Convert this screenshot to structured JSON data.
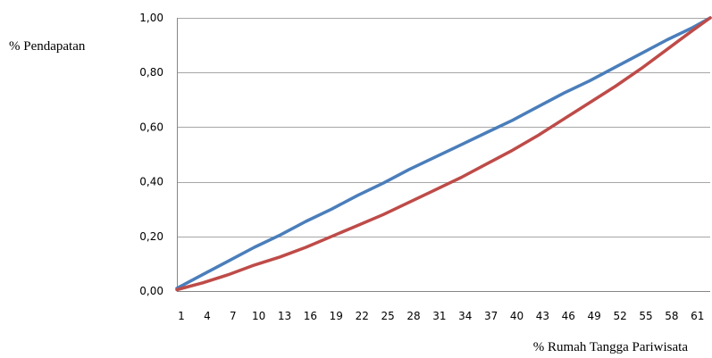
{
  "chart_data": {
    "type": "line",
    "title": "",
    "ylabel": "% Pendapatan",
    "xlabel": "% Rumah Tangga Pariwisata",
    "ylim": [
      0,
      1
    ],
    "yticks": [
      "0,00",
      "0,20",
      "0,40",
      "0,60",
      "0,80",
      "1,00"
    ],
    "ytick_values": [
      0,
      0.2,
      0.4,
      0.6,
      0.8,
      1.0
    ],
    "xlim": [
      1,
      63
    ],
    "xticks": [
      "1",
      "4",
      "7",
      "10",
      "13",
      "16",
      "19",
      "22",
      "25",
      "28",
      "31",
      "34",
      "37",
      "40",
      "43",
      "46",
      "49",
      "52",
      "55",
      "58",
      "61"
    ],
    "xtick_values": [
      1,
      4,
      7,
      10,
      13,
      16,
      19,
      22,
      25,
      28,
      31,
      34,
      37,
      40,
      43,
      46,
      49,
      52,
      55,
      58,
      61
    ],
    "grid": true,
    "legend": "none",
    "colors": {
      "series1": "#4a7ebb",
      "series2": "#be4b48",
      "grid": "#a6a6a6"
    },
    "series": [
      {
        "color": "#4a7ebb",
        "x": [
          1,
          4,
          7,
          10,
          13,
          16,
          19,
          22,
          25,
          28,
          31,
          34,
          37,
          40,
          43,
          46,
          49,
          52,
          55,
          58,
          61,
          63
        ],
        "y": [
          0.01,
          0.06,
          0.11,
          0.16,
          0.205,
          0.255,
          0.3,
          0.35,
          0.395,
          0.445,
          0.49,
          0.535,
          0.58,
          0.625,
          0.675,
          0.725,
          0.77,
          0.82,
          0.87,
          0.92,
          0.965,
          1.0
        ]
      },
      {
        "color": "#be4b48",
        "x": [
          1,
          4,
          7,
          10,
          13,
          16,
          19,
          22,
          25,
          28,
          31,
          34,
          37,
          40,
          43,
          46,
          49,
          52,
          55,
          58,
          61,
          63
        ],
        "y": [
          0.005,
          0.03,
          0.06,
          0.095,
          0.125,
          0.16,
          0.2,
          0.24,
          0.28,
          0.325,
          0.37,
          0.415,
          0.465,
          0.515,
          0.57,
          0.63,
          0.69,
          0.75,
          0.815,
          0.885,
          0.955,
          1.0
        ]
      }
    ]
  }
}
